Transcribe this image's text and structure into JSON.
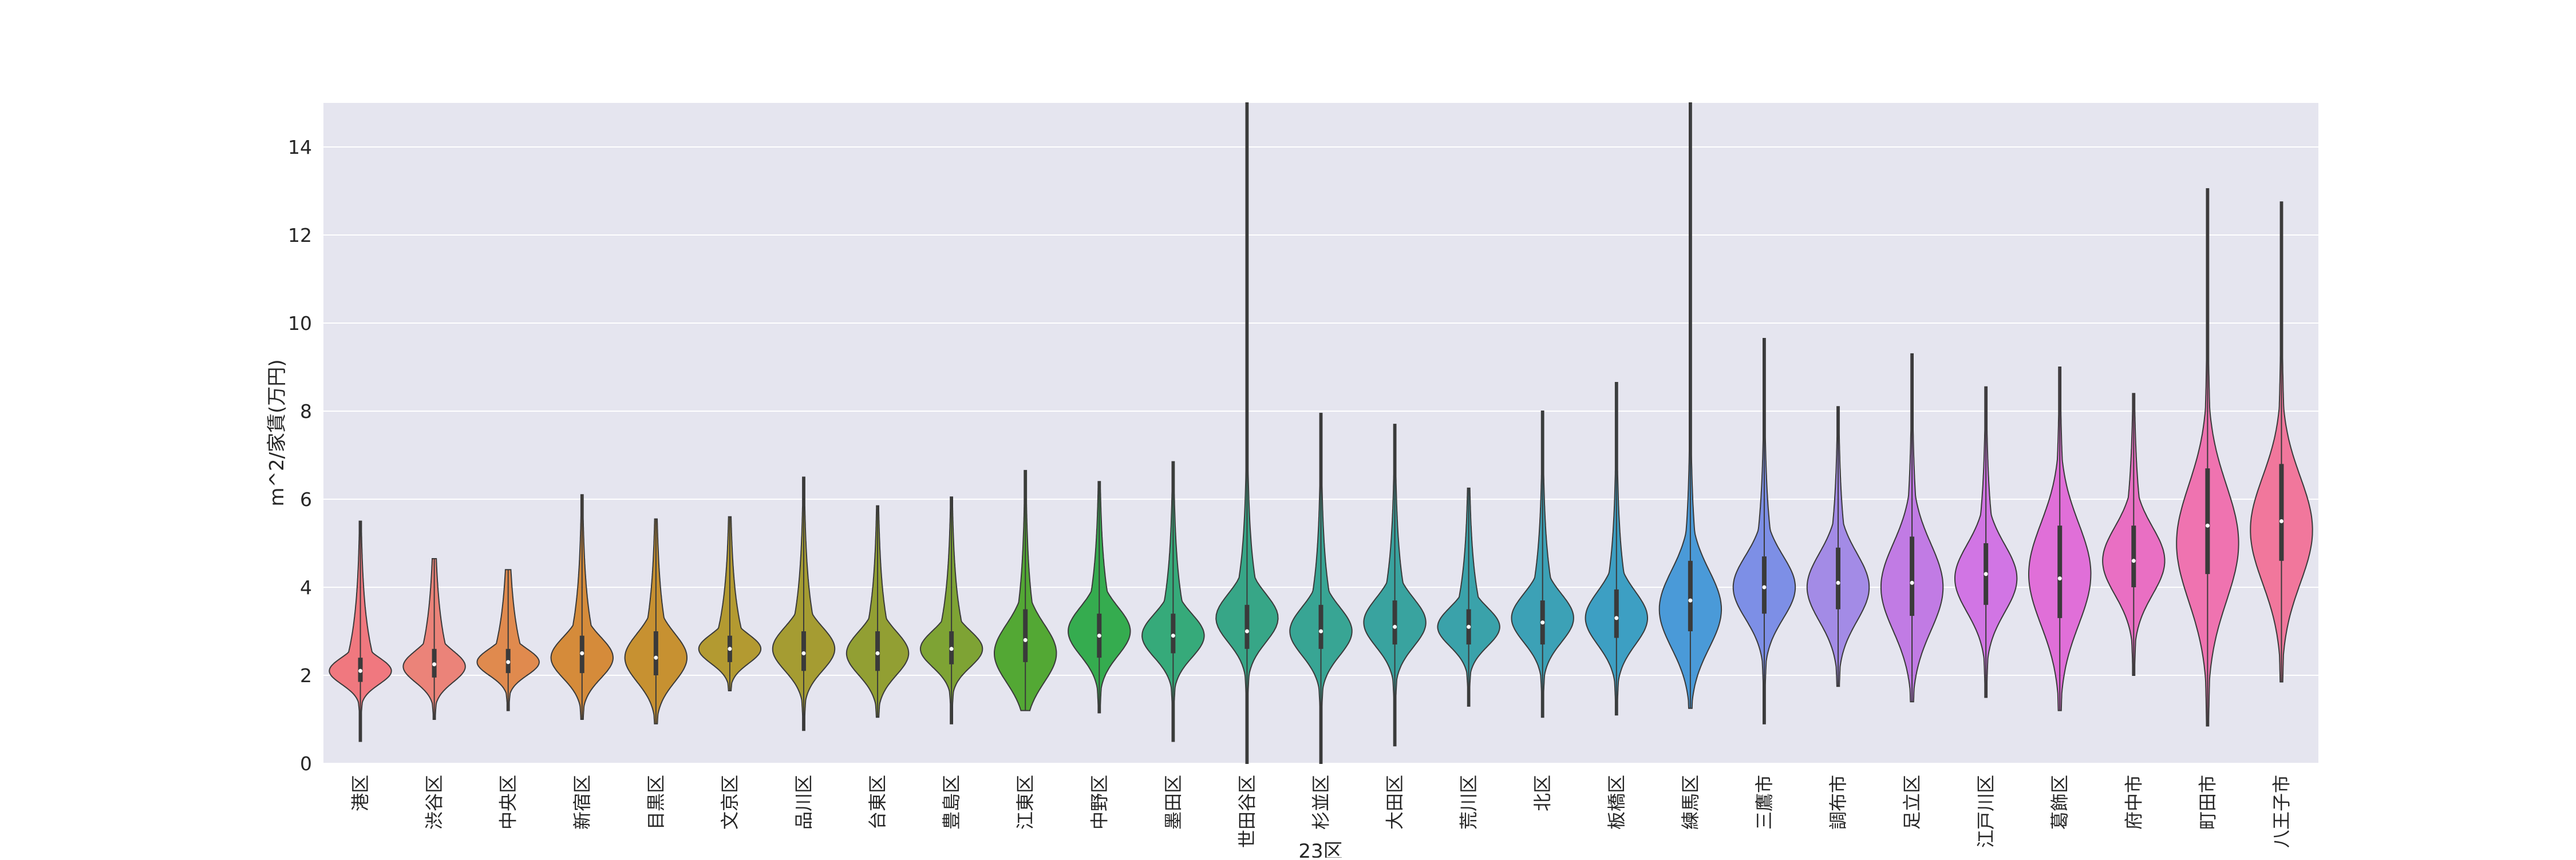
{
  "chart_data": {
    "type": "violin",
    "xlabel": "23区",
    "ylabel": "m^2/家賃(万円)",
    "ylim": [
      0,
      15
    ],
    "yticks": [
      0,
      2,
      4,
      6,
      8,
      10,
      12,
      14
    ],
    "grid": true,
    "legend": "none",
    "categories": [
      "港区",
      "渋谷区",
      "中央区",
      "新宿区",
      "目黒区",
      "文京区",
      "品川区",
      "台東区",
      "豊島区",
      "江東区",
      "中野区",
      "墨田区",
      "世田谷区",
      "杉並区",
      "大田区",
      "荒川区",
      "北区",
      "板橋区",
      "練馬区",
      "三鷹市",
      "調布市",
      "足立区",
      "江戸川区",
      "葛飾区",
      "府中市",
      "町田市",
      "八王子市"
    ],
    "colors": [
      "#f0787f",
      "#eb8379",
      "#e08a4e",
      "#d58b3a",
      "#c79131",
      "#b39a31",
      "#a59c32",
      "#929f33",
      "#7ea334",
      "#53a834",
      "#35ac4f",
      "#36aa7a",
      "#37a687",
      "#38a594",
      "#39a39f",
      "#3aa2aa",
      "#3ca1b6",
      "#3d9fc3",
      "#4a9ad8",
      "#7d8fe6",
      "#a38be6",
      "#c17be4",
      "#d175e4",
      "#e06fd8",
      "#e96fc3",
      "#ef73b0",
      "#f1779c"
    ],
    "series": [
      {
        "min": 0.5,
        "q1": 1.85,
        "median": 2.1,
        "q3": 2.4,
        "max": 5.5,
        "mode": 2.1
      },
      {
        "min": 1.0,
        "q1": 1.95,
        "median": 2.25,
        "q3": 2.6,
        "max": 4.65,
        "mode": 2.2
      },
      {
        "min": 1.2,
        "q1": 2.05,
        "median": 2.3,
        "q3": 2.6,
        "max": 4.4,
        "mode": 2.3
      },
      {
        "min": 1.0,
        "q1": 2.05,
        "median": 2.5,
        "q3": 2.9,
        "max": 6.1,
        "mode": 2.4
      },
      {
        "min": 0.9,
        "q1": 2.0,
        "median": 2.4,
        "q3": 3.0,
        "max": 5.55,
        "mode": 2.4
      },
      {
        "min": 1.65,
        "q1": 2.3,
        "median": 2.6,
        "q3": 2.9,
        "max": 5.6,
        "mode": 2.6
      },
      {
        "min": 0.75,
        "q1": 2.1,
        "median": 2.5,
        "q3": 3.0,
        "max": 6.5,
        "mode": 2.6
      },
      {
        "min": 1.05,
        "q1": 2.1,
        "median": 2.5,
        "q3": 3.0,
        "max": 5.85,
        "mode": 2.5
      },
      {
        "min": 0.9,
        "q1": 2.25,
        "median": 2.6,
        "q3": 3.0,
        "max": 6.05,
        "mode": 2.6
      },
      {
        "min": 1.2,
        "q1": 2.3,
        "median": 2.8,
        "q3": 3.5,
        "max": 6.65,
        "mode": 2.5
      },
      {
        "min": 1.15,
        "q1": 2.4,
        "median": 2.9,
        "q3": 3.4,
        "max": 6.4,
        "mode": 3.0
      },
      {
        "min": 0.5,
        "q1": 2.5,
        "median": 2.9,
        "q3": 3.4,
        "max": 6.85,
        "mode": 2.9
      },
      {
        "min": 0.0,
        "q1": 2.6,
        "median": 3.0,
        "q3": 3.6,
        "max": 15.0,
        "mode": 3.3
      },
      {
        "min": 0.0,
        "q1": 2.6,
        "median": 3.0,
        "q3": 3.6,
        "max": 7.95,
        "mode": 3.0
      },
      {
        "min": 0.4,
        "q1": 2.7,
        "median": 3.1,
        "q3": 3.7,
        "max": 7.7,
        "mode": 3.2
      },
      {
        "min": 1.3,
        "q1": 2.7,
        "median": 3.1,
        "q3": 3.5,
        "max": 6.25,
        "mode": 3.1
      },
      {
        "min": 1.05,
        "q1": 2.7,
        "median": 3.2,
        "q3": 3.7,
        "max": 8.0,
        "mode": 3.3
      },
      {
        "min": 1.1,
        "q1": 2.85,
        "median": 3.3,
        "q3": 3.95,
        "max": 8.65,
        "mode": 3.3
      },
      {
        "min": 1.25,
        "q1": 3.0,
        "median": 3.7,
        "q3": 4.6,
        "max": 15.0,
        "mode": 3.5
      },
      {
        "min": 0.9,
        "q1": 3.4,
        "median": 4.0,
        "q3": 4.7,
        "max": 9.65,
        "mode": 4.0
      },
      {
        "min": 1.75,
        "q1": 3.5,
        "median": 4.1,
        "q3": 4.9,
        "max": 8.1,
        "mode": 4.0
      },
      {
        "min": 1.4,
        "q1": 3.35,
        "median": 4.1,
        "q3": 5.15,
        "max": 9.3,
        "mode": 4.0
      },
      {
        "min": 1.5,
        "q1": 3.6,
        "median": 4.3,
        "q3": 5.0,
        "max": 8.55,
        "mode": 4.2
      },
      {
        "min": 1.2,
        "q1": 3.3,
        "median": 4.2,
        "q3": 5.4,
        "max": 9.0,
        "mode": 4.3
      },
      {
        "min": 2.0,
        "q1": 4.0,
        "median": 4.6,
        "q3": 5.4,
        "max": 8.4,
        "mode": 4.6
      },
      {
        "min": 0.85,
        "q1": 4.3,
        "median": 5.4,
        "q3": 6.7,
        "max": 13.05,
        "mode": 5.0
      },
      {
        "min": 1.85,
        "q1": 4.6,
        "median": 5.5,
        "q3": 6.8,
        "max": 12.75,
        "mode": 5.3
      }
    ]
  }
}
